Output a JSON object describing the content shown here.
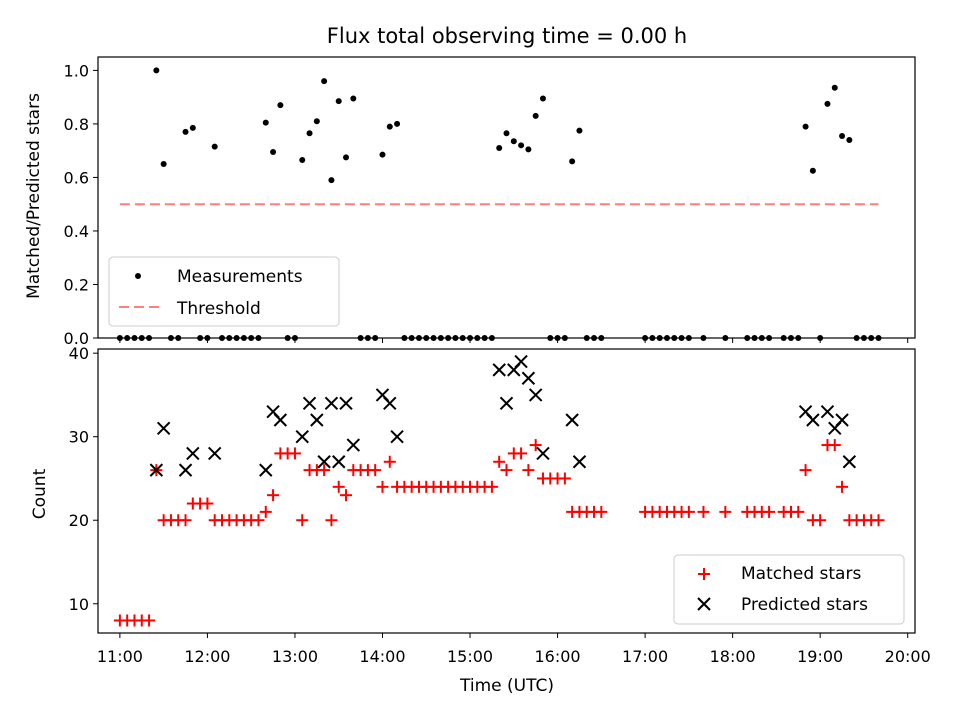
{
  "chart_data": [
    {
      "type": "scatter",
      "title": "Flux total observing time = 0.00 h",
      "xlabel": "",
      "ylabel": "Matched/Predicted stars",
      "xlim": [
        "10:45",
        "20:05"
      ],
      "ylim": [
        0,
        1.05
      ],
      "yticks": [
        0.0,
        0.2,
        0.4,
        0.6,
        0.8,
        1.0
      ],
      "ytick_labels": [
        "0.0",
        "0.2",
        "0.4",
        "0.6",
        "0.8",
        "1.0"
      ],
      "legend": {
        "placement": "lower-left",
        "entries": [
          "Measurements",
          "Threshold"
        ]
      },
      "threshold": {
        "name": "Threshold",
        "value": 0.5,
        "x": [
          "11:00",
          "19:40"
        ],
        "color": "#ff7f7f"
      },
      "series": [
        {
          "name": "Measurements",
          "color": "#000000",
          "points": [
            [
              "11:25",
              1.0
            ],
            [
              "11:30",
              0.65
            ],
            [
              "11:45",
              0.77
            ],
            [
              "11:50",
              0.785
            ],
            [
              "12:05",
              0.715
            ],
            [
              "12:40",
              0.805
            ],
            [
              "12:45",
              0.695
            ],
            [
              "12:50",
              0.87
            ],
            [
              "13:05",
              0.665
            ],
            [
              "13:10",
              0.765
            ],
            [
              "13:15",
              0.81
            ],
            [
              "13:20",
              0.96
            ],
            [
              "13:25",
              0.59
            ],
            [
              "13:30",
              0.885
            ],
            [
              "13:35",
              0.675
            ],
            [
              "13:40",
              0.895
            ],
            [
              "14:00",
              0.685
            ],
            [
              "14:05",
              0.79
            ],
            [
              "14:10",
              0.8
            ],
            [
              "15:20",
              0.71
            ],
            [
              "15:25",
              0.765
            ],
            [
              "15:30",
              0.735
            ],
            [
              "15:35",
              0.72
            ],
            [
              "15:40",
              0.705
            ],
            [
              "15:45",
              0.83
            ],
            [
              "15:50",
              0.895
            ],
            [
              "16:10",
              0.66
            ],
            [
              "16:15",
              0.775
            ],
            [
              "18:50",
              0.79
            ],
            [
              "18:55",
              0.625
            ],
            [
              "19:05",
              0.875
            ],
            [
              "19:10",
              0.935
            ],
            [
              "19:15",
              0.755
            ],
            [
              "19:20",
              0.74
            ]
          ],
          "zero_points": [
            "11:00",
            "11:05",
            "11:10",
            "11:15",
            "11:20",
            "11:35",
            "11:40",
            "11:55",
            "12:00",
            "12:10",
            "12:15",
            "12:20",
            "12:25",
            "12:30",
            "12:35",
            "12:55",
            "13:00",
            "13:45",
            "13:50",
            "13:55",
            "14:15",
            "14:20",
            "14:25",
            "14:30",
            "14:35",
            "14:40",
            "14:45",
            "14:50",
            "14:55",
            "15:00",
            "15:05",
            "15:10",
            "15:15",
            "15:55",
            "16:00",
            "16:05",
            "16:20",
            "16:25",
            "16:30",
            "17:00",
            "17:05",
            "17:10",
            "17:15",
            "17:20",
            "17:25",
            "17:30",
            "17:40",
            "17:55",
            "18:10",
            "18:15",
            "18:20",
            "18:25",
            "18:35",
            "18:40",
            "18:45",
            "19:00",
            "19:25",
            "19:30",
            "19:35",
            "19:40"
          ]
        }
      ]
    },
    {
      "type": "scatter",
      "xlabel": "Time (UTC)",
      "ylabel": "Count",
      "xlim": [
        "10:45",
        "20:05"
      ],
      "ylim": [
        6.5,
        40.5
      ],
      "xticks": [
        "11:00",
        "12:00",
        "13:00",
        "14:00",
        "15:00",
        "16:00",
        "17:00",
        "18:00",
        "19:00",
        "20:00"
      ],
      "yticks": [
        10,
        20,
        30,
        40
      ],
      "ytick_labels": [
        "10",
        "20",
        "30",
        "40"
      ],
      "legend": {
        "placement": "lower-right",
        "entries": [
          "Matched stars",
          "Predicted stars"
        ]
      },
      "series": [
        {
          "name": "Matched stars",
          "marker": "plus",
          "color": "#ff0000",
          "points": [
            [
              "11:00",
              8
            ],
            [
              "11:05",
              8
            ],
            [
              "11:10",
              8
            ],
            [
              "11:15",
              8
            ],
            [
              "11:20",
              8
            ],
            [
              "11:25",
              26
            ],
            [
              "11:30",
              20
            ],
            [
              "11:35",
              20
            ],
            [
              "11:40",
              20
            ],
            [
              "11:45",
              20
            ],
            [
              "11:50",
              22
            ],
            [
              "11:55",
              22
            ],
            [
              "12:00",
              22
            ],
            [
              "12:05",
              20
            ],
            [
              "12:10",
              20
            ],
            [
              "12:15",
              20
            ],
            [
              "12:20",
              20
            ],
            [
              "12:25",
              20
            ],
            [
              "12:30",
              20
            ],
            [
              "12:35",
              20
            ],
            [
              "12:40",
              21
            ],
            [
              "12:45",
              23
            ],
            [
              "12:50",
              28
            ],
            [
              "12:55",
              28
            ],
            [
              "13:00",
              28
            ],
            [
              "13:05",
              20
            ],
            [
              "13:10",
              26
            ],
            [
              "13:15",
              26
            ],
            [
              "13:20",
              26
            ],
            [
              "13:25",
              20
            ],
            [
              "13:30",
              24
            ],
            [
              "13:35",
              23
            ],
            [
              "13:40",
              26
            ],
            [
              "13:45",
              26
            ],
            [
              "13:50",
              26
            ],
            [
              "13:55",
              26
            ],
            [
              "14:00",
              24
            ],
            [
              "14:05",
              27
            ],
            [
              "14:10",
              24
            ],
            [
              "14:15",
              24
            ],
            [
              "14:20",
              24
            ],
            [
              "14:25",
              24
            ],
            [
              "14:30",
              24
            ],
            [
              "14:35",
              24
            ],
            [
              "14:40",
              24
            ],
            [
              "14:45",
              24
            ],
            [
              "14:50",
              24
            ],
            [
              "14:55",
              24
            ],
            [
              "15:00",
              24
            ],
            [
              "15:05",
              24
            ],
            [
              "15:10",
              24
            ],
            [
              "15:15",
              24
            ],
            [
              "15:20",
              27
            ],
            [
              "15:25",
              26
            ],
            [
              "15:30",
              28
            ],
            [
              "15:35",
              28
            ],
            [
              "15:40",
              26
            ],
            [
              "15:45",
              29
            ],
            [
              "15:50",
              25
            ],
            [
              "15:55",
              25
            ],
            [
              "16:00",
              25
            ],
            [
              "16:05",
              25
            ],
            [
              "16:10",
              21
            ],
            [
              "16:15",
              21
            ],
            [
              "16:20",
              21
            ],
            [
              "16:25",
              21
            ],
            [
              "16:30",
              21
            ],
            [
              "17:00",
              21
            ],
            [
              "17:05",
              21
            ],
            [
              "17:10",
              21
            ],
            [
              "17:15",
              21
            ],
            [
              "17:20",
              21
            ],
            [
              "17:25",
              21
            ],
            [
              "17:30",
              21
            ],
            [
              "17:40",
              21
            ],
            [
              "17:55",
              21
            ],
            [
              "18:10",
              21
            ],
            [
              "18:15",
              21
            ],
            [
              "18:20",
              21
            ],
            [
              "18:25",
              21
            ],
            [
              "18:35",
              21
            ],
            [
              "18:40",
              21
            ],
            [
              "18:45",
              21
            ],
            [
              "18:50",
              26
            ],
            [
              "18:55",
              20
            ],
            [
              "19:00",
              20
            ],
            [
              "19:05",
              29
            ],
            [
              "19:10",
              29
            ],
            [
              "19:15",
              24
            ],
            [
              "19:20",
              20
            ],
            [
              "19:25",
              20
            ],
            [
              "19:30",
              20
            ],
            [
              "19:35",
              20
            ],
            [
              "19:40",
              20
            ]
          ]
        },
        {
          "name": "Predicted stars",
          "marker": "x",
          "color": "#000000",
          "points": [
            [
              "11:25",
              26
            ],
            [
              "11:30",
              31
            ],
            [
              "11:45",
              26
            ],
            [
              "11:50",
              28
            ],
            [
              "12:05",
              28
            ],
            [
              "12:40",
              26
            ],
            [
              "12:45",
              33
            ],
            [
              "12:50",
              32
            ],
            [
              "13:05",
              30
            ],
            [
              "13:10",
              34
            ],
            [
              "13:15",
              32
            ],
            [
              "13:20",
              27
            ],
            [
              "13:25",
              34
            ],
            [
              "13:30",
              27
            ],
            [
              "13:35",
              34
            ],
            [
              "13:40",
              29
            ],
            [
              "14:00",
              35
            ],
            [
              "14:05",
              34
            ],
            [
              "14:10",
              30
            ],
            [
              "15:20",
              38
            ],
            [
              "15:25",
              34
            ],
            [
              "15:30",
              38
            ],
            [
              "15:35",
              39
            ],
            [
              "15:40",
              37
            ],
            [
              "15:45",
              35
            ],
            [
              "15:50",
              28
            ],
            [
              "16:10",
              32
            ],
            [
              "16:15",
              27
            ],
            [
              "18:50",
              33
            ],
            [
              "18:55",
              32
            ],
            [
              "19:05",
              33
            ],
            [
              "19:10",
              31
            ],
            [
              "19:15",
              32
            ],
            [
              "19:20",
              27
            ]
          ]
        }
      ]
    }
  ]
}
